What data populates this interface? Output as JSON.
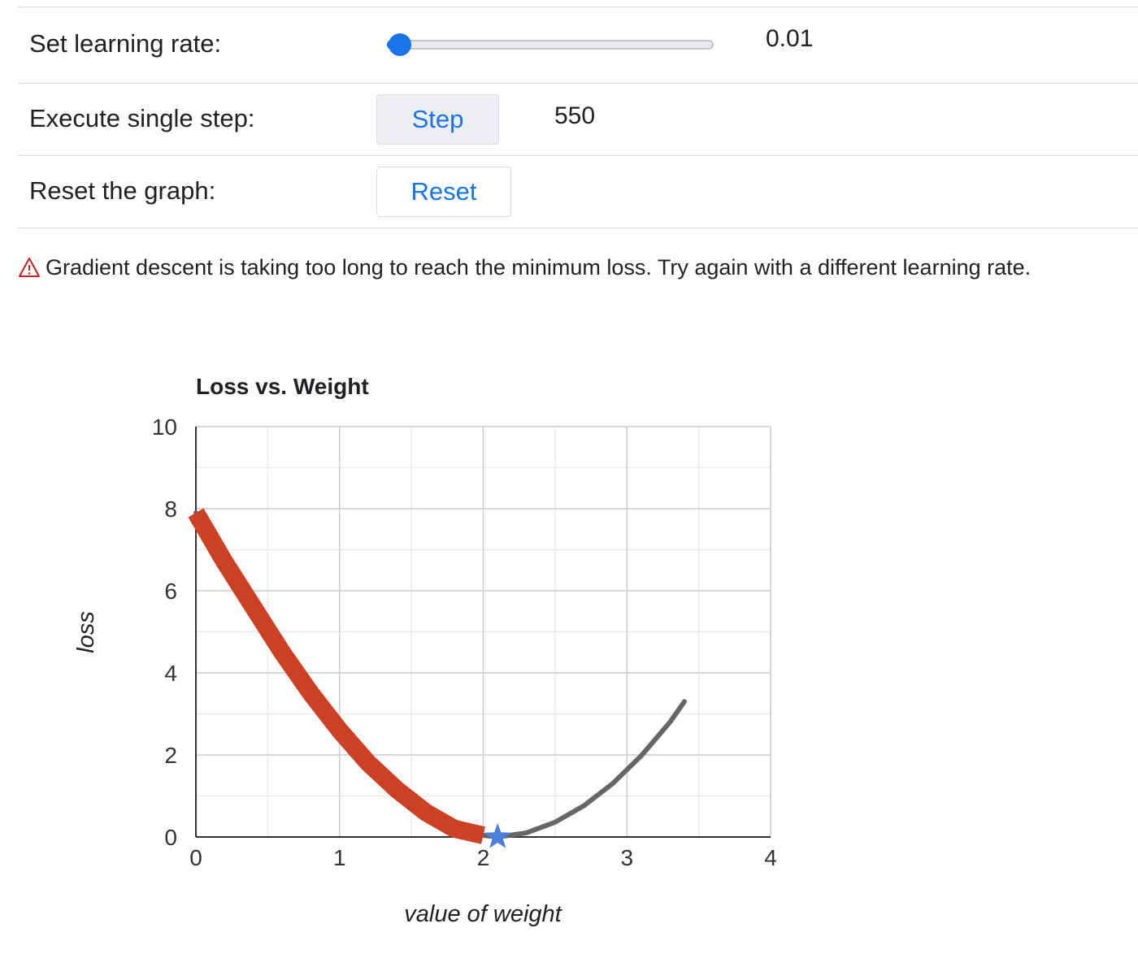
{
  "controls": {
    "learning_rate": {
      "label": "Set learning rate:",
      "value": "0.01",
      "slider_fraction": 0.04
    },
    "step": {
      "label": "Execute single step:",
      "button_label": "Step",
      "count": "550"
    },
    "reset": {
      "label": "Reset the graph:",
      "button_label": "Reset"
    }
  },
  "warning": {
    "icon": "warning-triangle-icon",
    "text": "Gradient descent is taking too long to reach the minimum loss. Try again with a different learning rate."
  },
  "colors": {
    "accent": "#1a73e8",
    "descent_path": "#cc4125",
    "loss_curve": "#666666",
    "warning": "#c5221f",
    "current_point": "#4a80dc"
  },
  "chart_data": {
    "type": "line",
    "title": "Loss vs. Weight",
    "xlabel": "value of weight",
    "ylabel": "loss",
    "xlim": [
      0,
      4
    ],
    "ylim": [
      0,
      10
    ],
    "x_ticks": [
      "0",
      "1",
      "2",
      "3",
      "4"
    ],
    "y_ticks": [
      "0",
      "2",
      "4",
      "6",
      "8",
      "10"
    ],
    "grid": true,
    "series": [
      {
        "type": "line",
        "x": [
          0,
          0.2,
          0.4,
          0.6,
          0.8,
          1.0,
          1.2,
          1.4,
          1.6,
          1.8,
          2.0,
          2.1,
          2.3,
          2.5,
          2.7,
          2.9,
          3.1,
          3.3,
          3.4
        ],
        "y": [
          7.9,
          6.7,
          5.6,
          4.5,
          3.5,
          2.6,
          1.8,
          1.15,
          0.6,
          0.2,
          0.04,
          0.0,
          0.1,
          0.36,
          0.76,
          1.3,
          1.98,
          2.8,
          3.3
        ]
      },
      {
        "type": "line",
        "x": [
          0,
          0.2,
          0.4,
          0.6,
          0.8,
          1.0,
          1.2,
          1.4,
          1.6,
          1.8,
          2.0
        ],
        "y": [
          7.9,
          6.7,
          5.6,
          4.5,
          3.5,
          2.6,
          1.8,
          1.15,
          0.6,
          0.2,
          0.04
        ]
      },
      {
        "type": "scatter",
        "marker": "star",
        "x": [
          2.1
        ],
        "y": [
          0.0
        ]
      }
    ]
  }
}
